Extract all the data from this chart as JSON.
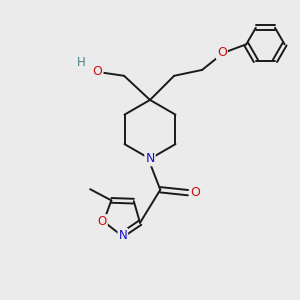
{
  "bg_color": "#ebebeb",
  "bond_color": "#1a1a1a",
  "bond_width": 1.4,
  "atom_colors": {
    "N": "#1010cc",
    "O": "#cc1010",
    "H": "#4a8080",
    "C": "#1a1a1a"
  },
  "figsize": [
    3.0,
    3.0
  ],
  "dpi": 100
}
